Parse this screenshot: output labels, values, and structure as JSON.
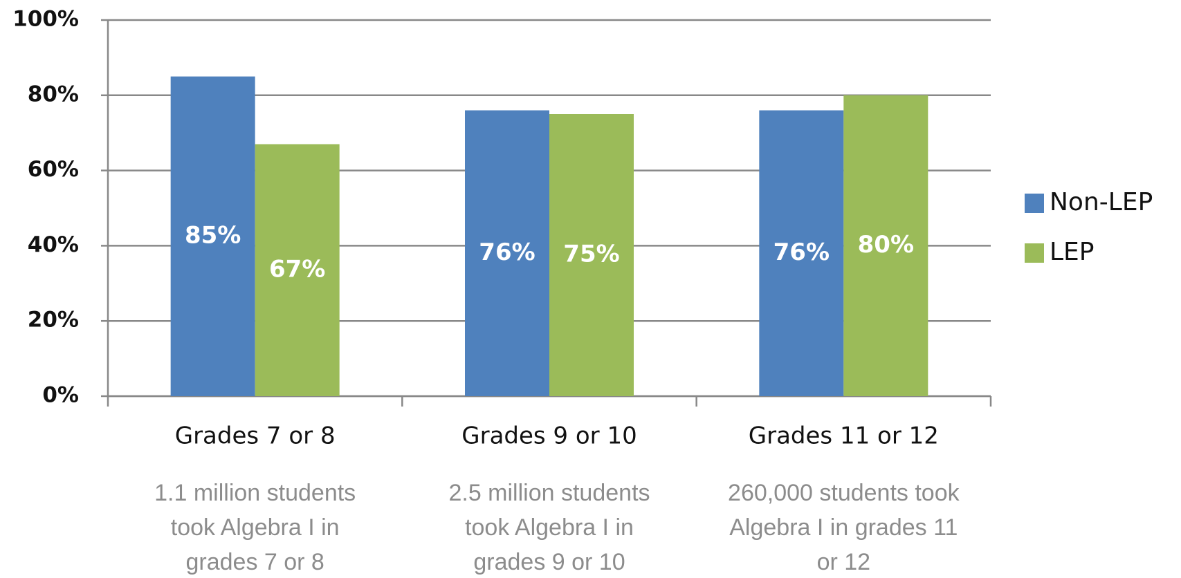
{
  "chart_data": {
    "type": "bar",
    "categories": [
      "Grades 7 or 8",
      "Grades 9 or 10",
      "Grades 11 or 12"
    ],
    "series": [
      {
        "name": "Non-LEP",
        "color": "#4f81bd",
        "values": [
          85,
          76,
          76
        ],
        "value_labels": [
          "85%",
          "76%",
          "76%"
        ]
      },
      {
        "name": "LEP",
        "color": "#9bbb59",
        "values": [
          67,
          75,
          80
        ],
        "value_labels": [
          "67%",
          "75%",
          "80%"
        ]
      }
    ],
    "ylim": [
      0,
      100
    ],
    "yticks": [
      {
        "value": 0,
        "label": "0%"
      },
      {
        "value": 20,
        "label": "20%"
      },
      {
        "value": 40,
        "label": "40%"
      },
      {
        "value": 60,
        "label": "60%"
      },
      {
        "value": 80,
        "label": "80%"
      },
      {
        "value": 100,
        "label": "100%"
      }
    ],
    "grid": true,
    "legend": "right",
    "notes": [
      [
        "1.1 million students",
        "took Algebra I in",
        "grades 7 or 8"
      ],
      [
        "2.5 million students",
        "took Algebra I in",
        "grades 9 or 10"
      ],
      [
        "260,000 students took",
        "Algebra I in grades 11",
        "or 12"
      ]
    ]
  }
}
